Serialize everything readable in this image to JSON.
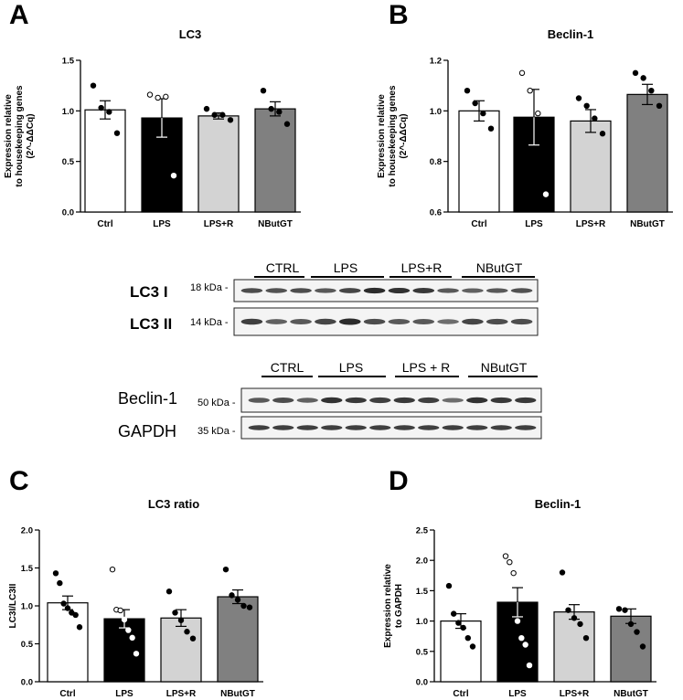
{
  "panels": {
    "A": "A",
    "B": "B",
    "C": "C",
    "D": "D"
  },
  "charts": [
    {
      "id": "A",
      "type": "bar",
      "title": "LC3",
      "ylabel_lines": [
        "Expression relative",
        "to housekeeping genes",
        "(2^-ΔΔCq)"
      ],
      "ylim": [
        0,
        1.5
      ],
      "yticks": [
        "0.0",
        "0.5",
        "1.0",
        "1.5"
      ],
      "ytick_values": [
        0,
        0.5,
        1.0,
        1.5
      ],
      "categories": [
        "Ctrl",
        "LPS",
        "LPS+R",
        "NButGT"
      ],
      "fills": [
        "#ffffff",
        "#000000",
        "#d3d3d3",
        "#808080"
      ],
      "values": [
        1.01,
        0.93,
        0.95,
        1.02
      ],
      "errors": [
        0.09,
        0.19,
        0.03,
        0.07
      ],
      "points": [
        [
          1.25,
          1.03,
          0.99,
          0.78
        ],
        [
          1.16,
          1.13,
          1.14,
          0.36
        ],
        [
          1.02,
          0.96,
          0.96,
          0.91
        ],
        [
          1.2,
          1.02,
          0.99,
          0.87
        ]
      ]
    },
    {
      "id": "B",
      "type": "bar",
      "title": "Beclin-1",
      "ylabel_lines": [
        "Expression relative",
        "to housekeeping genes",
        "(2^-ΔΔCq)"
      ],
      "ylim": [
        0.6,
        1.2
      ],
      "yticks": [
        "0.6",
        "0.8",
        "1.0",
        "1.2"
      ],
      "ytick_values": [
        0.6,
        0.8,
        1.0,
        1.2
      ],
      "categories": [
        "Ctrl",
        "LPS",
        "LPS+R",
        "NButGT"
      ],
      "fills": [
        "#ffffff",
        "#000000",
        "#d3d3d3",
        "#808080"
      ],
      "values": [
        1.0,
        0.975,
        0.96,
        1.065
      ],
      "errors": [
        0.04,
        0.11,
        0.045,
        0.04
      ],
      "points": [
        [
          1.08,
          1.03,
          0.99,
          0.93
        ],
        [
          1.15,
          1.08,
          0.99,
          0.67
        ],
        [
          1.05,
          1.02,
          0.97,
          0.91
        ],
        [
          1.15,
          1.13,
          1.08,
          1.02
        ]
      ]
    },
    {
      "id": "C",
      "type": "bar",
      "title": "LC3 ratio",
      "ylabel_lines": [
        "LC3I/LC3II"
      ],
      "ylim": [
        0,
        2.0
      ],
      "yticks": [
        "0.0",
        "0.5",
        "1.0",
        "1.5",
        "2.0"
      ],
      "ytick_values": [
        0,
        0.5,
        1.0,
        1.5,
        2.0
      ],
      "categories": [
        "Ctrl",
        "LPS",
        "LPS+R",
        "NButGT"
      ],
      "fills": [
        "#ffffff",
        "#000000",
        "#d3d3d3",
        "#808080"
      ],
      "values": [
        1.04,
        0.83,
        0.84,
        1.12
      ],
      "errors": [
        0.09,
        0.12,
        0.11,
        0.09
      ],
      "points": [
        [
          1.43,
          1.3,
          1.03,
          0.97,
          0.91,
          0.88,
          0.72
        ],
        [
          1.48,
          0.95,
          0.94,
          0.82,
          0.68,
          0.58,
          0.37
        ],
        [
          1.19,
          0.91,
          0.81,
          0.66,
          0.57
        ],
        [
          1.48,
          1.14,
          1.08,
          1.0,
          0.98
        ]
      ]
    },
    {
      "id": "D",
      "type": "bar",
      "title": "Beclin-1",
      "ylabel_lines": [
        "Expression relative",
        "to GAPDH"
      ],
      "ylim": [
        0,
        2.5
      ],
      "yticks": [
        "0.0",
        "0.5",
        "1.0",
        "1.5",
        "2.0",
        "2.5"
      ],
      "ytick_values": [
        0,
        0.5,
        1.0,
        1.5,
        2.0,
        2.5
      ],
      "categories": [
        "Ctrl",
        "LPS",
        "LPS+R",
        "NButGT"
      ],
      "fills": [
        "#ffffff",
        "#000000",
        "#d3d3d3",
        "#808080"
      ],
      "values": [
        1.0,
        1.31,
        1.15,
        1.08
      ],
      "errors": [
        0.12,
        0.24,
        0.12,
        0.12
      ],
      "points": [
        [
          1.58,
          1.12,
          0.97,
          0.89,
          0.72,
          0.58
        ],
        [
          2.07,
          1.97,
          1.79,
          1.0,
          0.72,
          0.61,
          0.27
        ],
        [
          1.8,
          1.18,
          1.05,
          0.95,
          0.72
        ],
        [
          1.2,
          1.18,
          0.95,
          0.82,
          0.58
        ]
      ]
    }
  ],
  "blot1": {
    "groups": [
      "CTRL",
      "LPS",
      "LPS+R",
      "NButGT"
    ],
    "rows": [
      {
        "name": "LC3 I",
        "kda": "18 kDa -"
      },
      {
        "name": "LC3 II",
        "kda": "14 kDa -"
      }
    ]
  },
  "blot2": {
    "groups": [
      "CTRL",
      "LPS",
      "LPS + R",
      "NButGT"
    ],
    "rows": [
      {
        "name": "Beclin-1",
        "kda": "50 kDa -"
      },
      {
        "name": "GAPDH",
        "kda": "35 kDa -"
      }
    ]
  }
}
